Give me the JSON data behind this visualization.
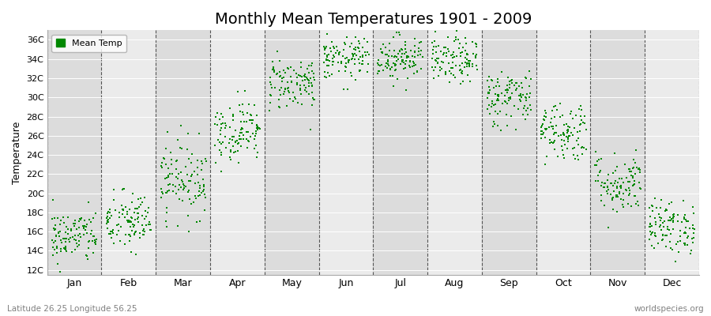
{
  "title": "Monthly Mean Temperatures 1901 - 2009",
  "ylabel": "Temperature",
  "subtitle": "Latitude 26.25 Longitude 56.25",
  "watermark": "worldspecies.org",
  "ytick_labels": [
    "12C",
    "14C",
    "16C",
    "18C",
    "20C",
    "22C",
    "24C",
    "26C",
    "28C",
    "30C",
    "32C",
    "34C",
    "36C"
  ],
  "ytick_values": [
    12,
    14,
    16,
    18,
    20,
    22,
    24,
    26,
    28,
    30,
    32,
    34,
    36
  ],
  "ylim": [
    11.5,
    37.0
  ],
  "xlim": [
    0,
    12
  ],
  "months": [
    "Jan",
    "Feb",
    "Mar",
    "Apr",
    "May",
    "Jun",
    "Jul",
    "Aug",
    "Sep",
    "Oct",
    "Nov",
    "Dec"
  ],
  "monthly_mean_temps": [
    15.5,
    17.0,
    21.5,
    26.5,
    31.5,
    34.0,
    34.2,
    33.8,
    30.0,
    26.5,
    21.0,
    16.5
  ],
  "monthly_std_temps": [
    1.4,
    1.6,
    2.0,
    1.6,
    1.4,
    1.1,
    1.2,
    1.2,
    1.5,
    1.6,
    1.6,
    1.4
  ],
  "n_years": 109,
  "marker_color": "#008800",
  "marker_size": 4,
  "bg_color_dark": "#DCDCDC",
  "bg_color_light": "#EBEBEB",
  "dashed_line_color": "#555555",
  "legend_label": "Mean Temp",
  "title_fontsize": 14,
  "axis_label_fontsize": 9,
  "tick_fontsize": 8,
  "legend_fontsize": 8,
  "subtitle_fontsize": 7.5,
  "watermark_fontsize": 7.5
}
